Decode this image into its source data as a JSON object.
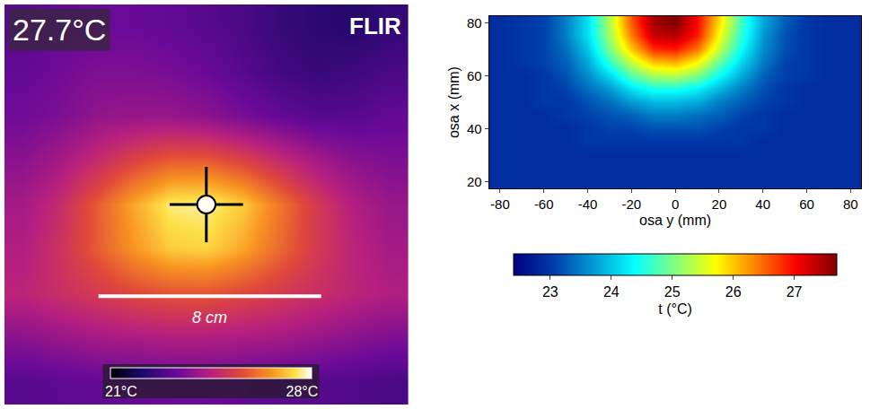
{
  "chart_data": [
    {
      "type": "heatmap",
      "annotations": {
        "reading": "27.7°C",
        "brand": "FLIR",
        "scale_bar": "8 cm"
      },
      "tick_labels": false,
      "zlim": [
        21,
        28
      ],
      "zticks": [
        {
          "value": 21,
          "label": "21°C"
        },
        {
          "value": 28,
          "label": "28°C"
        }
      ],
      "z": [
        [
          23.0,
          23.2,
          23.3,
          23.3,
          23.2,
          23.0,
          22.8,
          22.5,
          22.3,
          22.2,
          22.4
        ],
        [
          23.2,
          23.4,
          23.6,
          23.6,
          23.5,
          23.3,
          23.0,
          22.7,
          22.5,
          22.6,
          22.8
        ],
        [
          23.4,
          23.6,
          23.9,
          24.0,
          24.0,
          23.8,
          23.5,
          23.2,
          23.0,
          23.0,
          23.2
        ],
        [
          23.8,
          24.2,
          24.8,
          25.4,
          25.8,
          25.8,
          25.4,
          24.8,
          24.2,
          23.8,
          23.6
        ],
        [
          24.2,
          24.8,
          25.8,
          26.8,
          27.6,
          27.7,
          27.2,
          26.2,
          25.2,
          24.4,
          24.0
        ],
        [
          24.4,
          25.0,
          25.8,
          26.6,
          27.2,
          27.3,
          26.8,
          26.0,
          25.2,
          24.6,
          24.2
        ],
        [
          24.6,
          24.9,
          25.2,
          25.5,
          25.7,
          25.7,
          25.5,
          25.2,
          24.9,
          24.6,
          24.4
        ],
        [
          23.8,
          24.0,
          24.2,
          24.3,
          24.4,
          24.4,
          24.3,
          24.2,
          24.0,
          23.8,
          23.6
        ],
        [
          23.0,
          23.1,
          23.2,
          23.2,
          23.3,
          23.3,
          23.2,
          23.1,
          23.0,
          22.9,
          22.8
        ]
      ]
    },
    {
      "type": "heatmap",
      "x_label": "osa y (mm)",
      "y_label": "osa x (mm)",
      "z_label": "t (°C)",
      "x": [
        -80,
        -70,
        -60,
        -50,
        -40,
        -30,
        -20,
        -10,
        0,
        10,
        20,
        30,
        40,
        50,
        60,
        70,
        80
      ],
      "y": [
        20,
        25,
        30,
        35,
        40,
        45,
        50,
        55,
        60,
        65,
        70,
        75,
        80
      ],
      "xlim": [
        -85,
        85
      ],
      "xticks": [
        -80,
        -60,
        -40,
        -20,
        0,
        20,
        40,
        60,
        80
      ],
      "ylim": [
        17.5,
        82.5
      ],
      "yticks": [
        20,
        40,
        60,
        80
      ],
      "zlim": [
        22.4,
        27.7
      ],
      "zticks": [
        23,
        24,
        25,
        26,
        27
      ],
      "z": [
        [
          22.9,
          22.9,
          22.9,
          22.9,
          22.9,
          22.9,
          22.9,
          22.9,
          22.9,
          22.9,
          22.9,
          22.9,
          22.9,
          22.9,
          22.9,
          22.9,
          22.9
        ],
        [
          22.9,
          22.9,
          22.9,
          22.9,
          22.9,
          22.9,
          22.9,
          22.9,
          22.9,
          22.9,
          22.9,
          22.9,
          22.9,
          22.9,
          22.9,
          22.9,
          22.9
        ],
        [
          22.9,
          22.9,
          22.9,
          22.9,
          22.9,
          22.9,
          22.9,
          22.9,
          22.9,
          22.9,
          22.9,
          22.9,
          22.9,
          22.9,
          22.9,
          22.9,
          22.9
        ],
        [
          22.9,
          22.9,
          22.9,
          22.9,
          23.0,
          23.0,
          23.0,
          23.0,
          23.0,
          23.0,
          23.0,
          23.0,
          22.9,
          22.9,
          22.9,
          22.9,
          22.9
        ],
        [
          22.9,
          22.9,
          22.9,
          22.9,
          23.0,
          23.1,
          23.1,
          23.2,
          23.2,
          23.2,
          23.1,
          23.0,
          23.0,
          22.9,
          22.9,
          22.9,
          22.9
        ],
        [
          22.9,
          22.9,
          22.9,
          23.0,
          23.1,
          23.2,
          23.3,
          23.5,
          23.5,
          23.4,
          23.3,
          23.1,
          23.0,
          22.9,
          22.9,
          22.9,
          22.9
        ],
        [
          22.9,
          22.9,
          23.0,
          23.0,
          23.2,
          23.4,
          23.7,
          23.9,
          23.9,
          23.8,
          23.5,
          23.3,
          23.1,
          23.0,
          22.9,
          22.9,
          22.9
        ],
        [
          22.9,
          22.9,
          23.0,
          23.1,
          23.4,
          23.7,
          24.2,
          24.5,
          24.5,
          24.3,
          23.9,
          23.5,
          23.2,
          23.0,
          22.9,
          22.9,
          22.9
        ],
        [
          22.9,
          22.9,
          23.0,
          23.2,
          23.6,
          24.1,
          24.8,
          25.2,
          25.3,
          25.0,
          24.4,
          23.8,
          23.3,
          23.1,
          23.0,
          22.9,
          22.9
        ],
        [
          22.9,
          23.0,
          23.1,
          23.3,
          23.8,
          24.6,
          25.4,
          26.0,
          26.1,
          25.7,
          24.9,
          24.1,
          23.5,
          23.1,
          23.0,
          22.9,
          22.9
        ],
        [
          22.9,
          23.0,
          23.1,
          23.4,
          24.0,
          25.0,
          26.0,
          26.8,
          26.9,
          26.4,
          25.4,
          24.4,
          23.6,
          23.2,
          23.0,
          22.9,
          22.9
        ],
        [
          22.9,
          23.0,
          23.1,
          23.5,
          24.2,
          25.2,
          26.4,
          27.3,
          27.4,
          26.9,
          25.7,
          24.6,
          23.7,
          23.2,
          23.0,
          22.9,
          22.9
        ],
        [
          22.9,
          23.0,
          23.1,
          23.5,
          24.2,
          25.3,
          26.6,
          27.5,
          27.7,
          27.0,
          25.9,
          24.7,
          23.8,
          23.3,
          23.0,
          22.9,
          22.9
        ]
      ]
    }
  ]
}
